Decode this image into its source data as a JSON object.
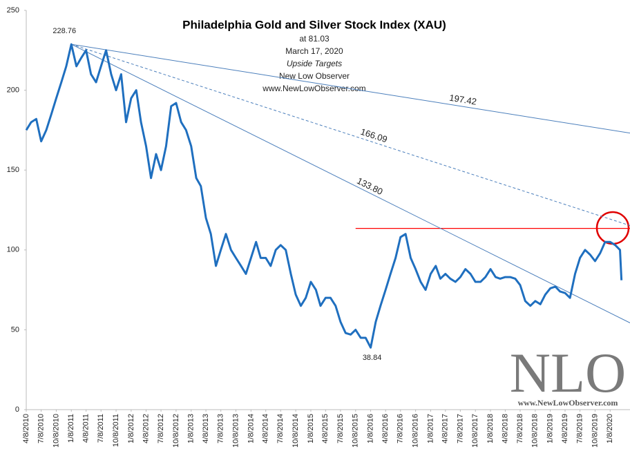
{
  "chart_data": {
    "type": "line",
    "title": "Philadelphia  Gold and Silver Stock Index (XAU)",
    "subtitle_lines": [
      "at 81.03",
      "March 17, 2020",
      "Upside Targets",
      "New Low Observer",
      "www.NewLowObserver.com"
    ],
    "watermark": {
      "logo": "NLO",
      "site": "www.NewLowObserver.com"
    },
    "xlim": [
      "4/8/2010",
      "5/8/2020"
    ],
    "xticks": [
      "4/8/2010",
      "7/8/2010",
      "10/8/2010",
      "1/8/2011",
      "4/8/2011",
      "7/8/2011",
      "10/8/2011",
      "1/8/2012",
      "4/8/2012",
      "7/8/2012",
      "10/8/2012",
      "1/8/2013",
      "4/8/2013",
      "7/8/2013",
      "10/8/2013",
      "1/8/2014",
      "4/8/2014",
      "7/8/2014",
      "10/8/2014",
      "1/8/2015",
      "4/8/2015",
      "7/8/2015",
      "10/8/2015",
      "1/8/2016",
      "4/8/2016",
      "7/8/2016",
      "10/8/2016",
      "1/8/2017",
      "4/8/2017",
      "7/8/2017",
      "10/8/2017",
      "1/8/2018",
      "4/8/2018",
      "7/8/2018",
      "10/8/2018",
      "1/8/2019",
      "4/8/2019",
      "7/8/2019",
      "10/8/2019",
      "1/8/2020"
    ],
    "ylim": [
      0,
      250
    ],
    "yticks": [
      0,
      50,
      100,
      150,
      200,
      250
    ],
    "grid": false,
    "series": [
      {
        "color": "#1f6fbf",
        "x": [
          "4/8/2010",
          "5/8/2010",
          "6/8/2010",
          "7/8/2010",
          "8/8/2010",
          "9/8/2010",
          "10/8/2010",
          "11/8/2010",
          "12/8/2010",
          "1/8/2011",
          "2/8/2011",
          "3/8/2011",
          "4/8/2011",
          "5/8/2011",
          "6/8/2011",
          "7/8/2011",
          "8/8/2011",
          "9/8/2011",
          "10/8/2011",
          "11/8/2011",
          "12/8/2011",
          "1/8/2012",
          "2/8/2012",
          "3/8/2012",
          "4/8/2012",
          "5/8/2012",
          "6/8/2012",
          "7/8/2012",
          "8/8/2012",
          "9/8/2012",
          "10/8/2012",
          "11/8/2012",
          "12/8/2012",
          "1/8/2013",
          "2/8/2013",
          "3/8/2013",
          "4/8/2013",
          "5/8/2013",
          "6/8/2013",
          "7/8/2013",
          "8/8/2013",
          "9/8/2013",
          "10/8/2013",
          "11/8/2013",
          "12/8/2013",
          "1/8/2014",
          "2/8/2014",
          "3/8/2014",
          "4/8/2014",
          "5/8/2014",
          "6/8/2014",
          "7/8/2014",
          "8/8/2014",
          "9/8/2014",
          "10/8/2014",
          "11/8/2014",
          "12/8/2014",
          "1/8/2015",
          "2/8/2015",
          "3/8/2015",
          "4/8/2015",
          "5/8/2015",
          "6/8/2015",
          "7/8/2015",
          "8/8/2015",
          "9/8/2015",
          "10/8/2015",
          "11/8/2015",
          "12/8/2015",
          "1/8/2016",
          "2/8/2016",
          "3/8/2016",
          "4/8/2016",
          "5/8/2016",
          "6/8/2016",
          "7/8/2016",
          "8/8/2016",
          "9/8/2016",
          "10/8/2016",
          "11/8/2016",
          "12/8/2016",
          "1/8/2017",
          "2/8/2017",
          "3/8/2017",
          "4/8/2017",
          "5/8/2017",
          "6/8/2017",
          "7/8/2017",
          "8/8/2017",
          "9/8/2017",
          "10/8/2017",
          "11/8/2017",
          "12/8/2017",
          "1/8/2018",
          "2/8/2018",
          "3/8/2018",
          "4/8/2018",
          "5/8/2018",
          "6/8/2018",
          "7/8/2018",
          "8/8/2018",
          "9/8/2018",
          "10/8/2018",
          "11/8/2018",
          "12/8/2018",
          "1/8/2019",
          "2/8/2019",
          "3/8/2019",
          "4/8/2019",
          "5/8/2019",
          "6/8/2019",
          "7/8/2019",
          "8/8/2019",
          "9/8/2019",
          "10/8/2019",
          "11/8/2019",
          "12/8/2019",
          "1/8/2020",
          "2/8/2020",
          "3/8/2020",
          "3/17/2020"
        ],
        "values": [
          175,
          180,
          182,
          168,
          175,
          185,
          195,
          205,
          215,
          228.76,
          215,
          220,
          225,
          210,
          205,
          215,
          225,
          210,
          200,
          210,
          180,
          195,
          200,
          180,
          165,
          145,
          160,
          150,
          165,
          190,
          192,
          180,
          175,
          165,
          145,
          140,
          120,
          110,
          90,
          100,
          110,
          100,
          95,
          90,
          85,
          95,
          105,
          95,
          95,
          90,
          100,
          103,
          100,
          85,
          72,
          65,
          70,
          80,
          75,
          65,
          70,
          70,
          65,
          55,
          48,
          47,
          50,
          45,
          45,
          38.84,
          55,
          65,
          75,
          85,
          95,
          108,
          110,
          95,
          88,
          80,
          75,
          85,
          90,
          82,
          85,
          82,
          80,
          83,
          88,
          85,
          80,
          80,
          83,
          88,
          83,
          82,
          83,
          83,
          82,
          78,
          68,
          65,
          68,
          66,
          72,
          76,
          77,
          74,
          73,
          70,
          85,
          95,
          100,
          97,
          93,
          98,
          105,
          105,
          103,
          100,
          81.03
        ]
      }
    ],
    "trendlines": [
      {
        "label": "197.42",
        "dashed": false,
        "color": "#4a7ebb",
        "from": [
          "1/8/2011",
          228.76
        ],
        "to": [
          "3/17/2020",
          174
        ]
      },
      {
        "label": "166.09",
        "dashed": true,
        "color": "#4a7ebb",
        "from": [
          "1/8/2011",
          228.76
        ],
        "to": [
          "3/17/2020",
          117
        ]
      },
      {
        "label": "133.80",
        "dashed": false,
        "color": "#4a7ebb",
        "from": [
          "1/8/2011",
          228.76
        ],
        "to": [
          "3/17/2020",
          57
        ]
      }
    ],
    "hline": {
      "value": 113.5,
      "from": "10/8/2015",
      "color": "#ff0000"
    }
  }
}
